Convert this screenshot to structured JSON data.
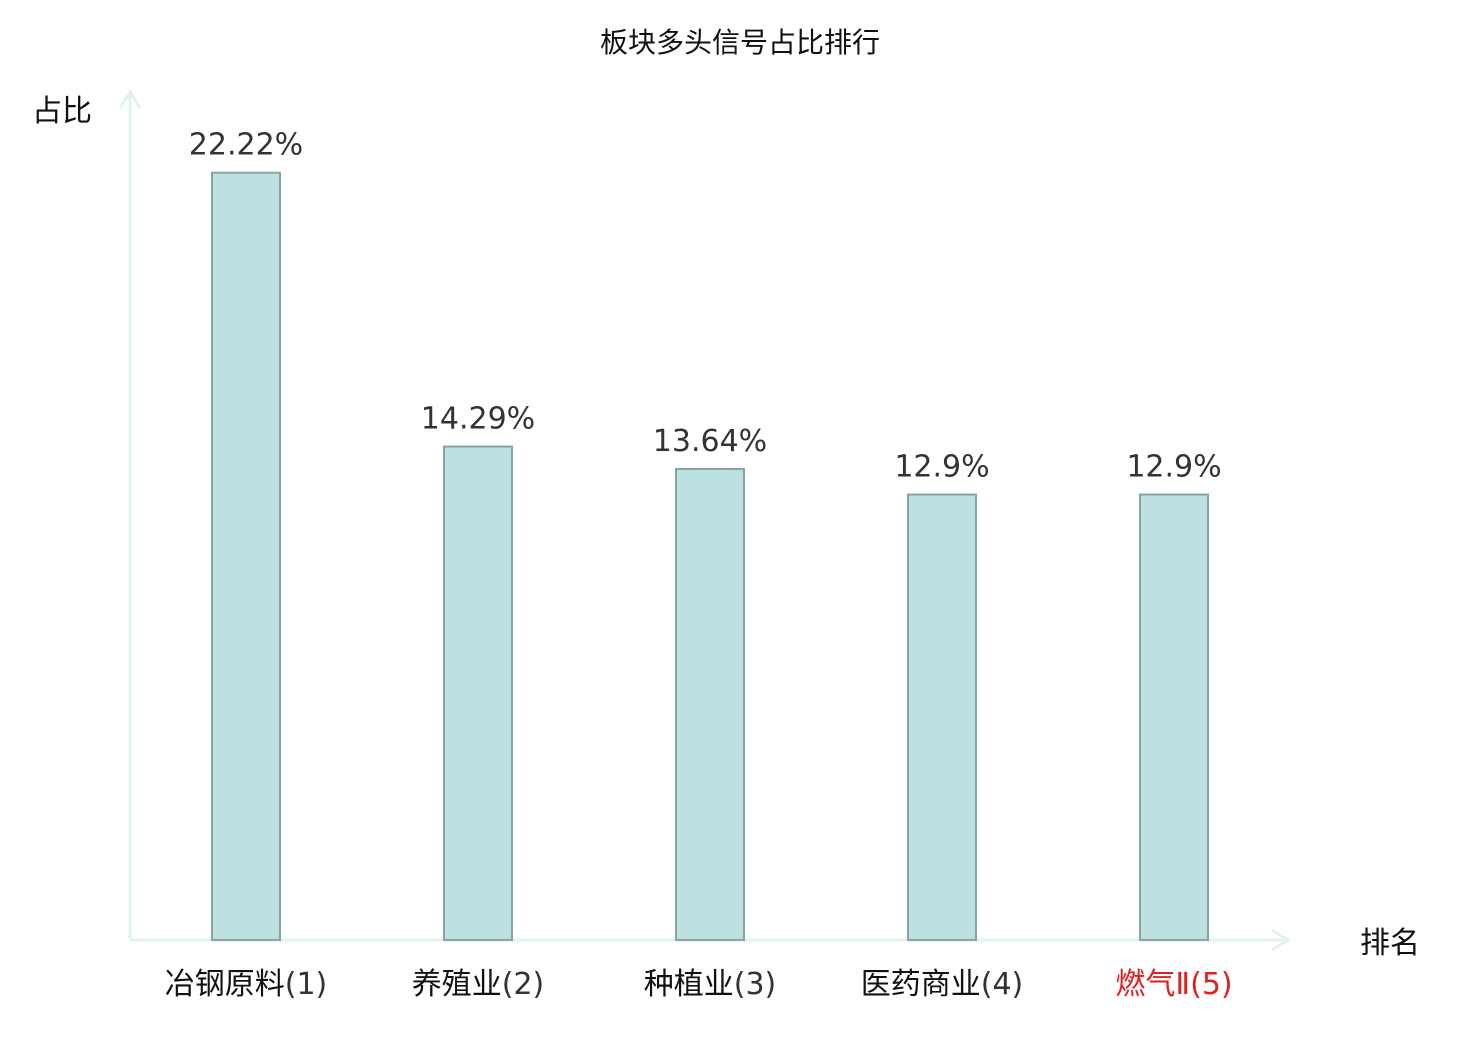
{
  "chart_data": {
    "type": "bar",
    "title": "板块多头信号占比排行",
    "ylabel": "占比",
    "xlabel": "排名",
    "ylim": [
      0,
      24.5
    ],
    "grid": false,
    "categories": [
      {
        "name": "冶钢原料",
        "rank": "(1)",
        "highlight": false
      },
      {
        "name": "养殖业",
        "rank": "(2)",
        "highlight": false
      },
      {
        "name": "种植业",
        "rank": "(3)",
        "highlight": false
      },
      {
        "name": "医药商业",
        "rank": "(4)",
        "highlight": false
      },
      {
        "name": "燃气Ⅱ",
        "rank": "(5)",
        "highlight": true
      }
    ],
    "values": [
      22.22,
      14.29,
      13.64,
      12.9,
      12.9
    ],
    "value_labels": [
      "22.22%",
      "14.29%",
      "13.64%",
      "12.9%",
      "12.9%"
    ]
  },
  "colors": {
    "bar_fill": "#bde0e1",
    "bar_stroke": "#86a5a6",
    "axis": "#e0f3f1",
    "highlight_label": "#e01f1f",
    "normal_label": "#111111",
    "rank_label": "#333333"
  }
}
